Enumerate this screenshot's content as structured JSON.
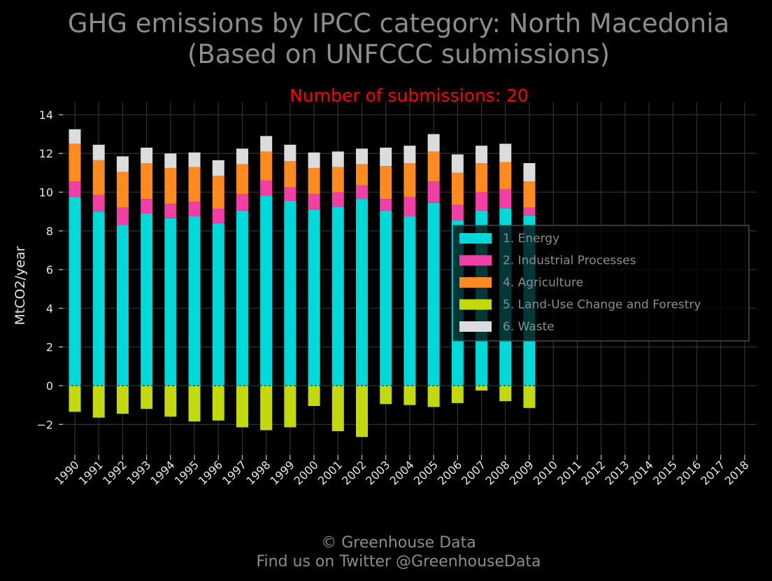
{
  "title_line1": "GHG emissions by IPCC category: North Macedonia",
  "title_line2": "(Based on UNFCCC submissions)",
  "subtitle": "Number of submissions: 20",
  "footer_line1": "© Greenhouse Data",
  "footer_line2": "Find us on Twitter @GreenhouseData",
  "colors": {
    "background": "#000000",
    "grid": "#2e2e2e",
    "subtitle": "#ff0000",
    "text": "#8c8c8c"
  },
  "chart_data": {
    "type": "bar",
    "stacked": true,
    "ylabel": "MtCO2/year",
    "xlabel": "",
    "ylim": [
      -3.5,
      14
    ],
    "yticks": [
      -2,
      0,
      2,
      4,
      6,
      8,
      10,
      12,
      14
    ],
    "ytick_labels": [
      "−2",
      "0",
      "2",
      "4",
      "6",
      "8",
      "10",
      "12",
      "14"
    ],
    "grid": true,
    "legend_position": "center-right",
    "categories": [
      "1990",
      "1991",
      "1992",
      "1993",
      "1994",
      "1995",
      "1996",
      "1997",
      "1998",
      "1999",
      "2000",
      "2001",
      "2002",
      "2003",
      "2004",
      "2005",
      "2006",
      "2007",
      "2008",
      "2009",
      "2010",
      "2011",
      "2012",
      "2013",
      "2014",
      "2015",
      "2016",
      "2017",
      "2018"
    ],
    "series": [
      {
        "name": "1. Energy",
        "color": "#00d9d9",
        "values": [
          9.75,
          9.0,
          8.3,
          8.9,
          8.65,
          8.75,
          8.4,
          9.05,
          9.8,
          9.55,
          9.1,
          9.25,
          9.65,
          9.05,
          8.75,
          9.45,
          8.55,
          9.05,
          9.15,
          8.8,
          null,
          null,
          null,
          null,
          null,
          null,
          null,
          null,
          null
        ]
      },
      {
        "name": "2. Industrial Processes",
        "color": "#f23fa5",
        "values": [
          0.8,
          0.85,
          0.9,
          0.75,
          0.75,
          0.75,
          0.75,
          0.85,
          0.8,
          0.7,
          0.8,
          0.75,
          0.7,
          0.6,
          1.0,
          1.1,
          0.8,
          0.95,
          1.0,
          0.4,
          null,
          null,
          null,
          null,
          null,
          null,
          null,
          null,
          null
        ]
      },
      {
        "name": "4. Agriculture",
        "color": "#ff8a1f",
        "values": [
          1.95,
          1.8,
          1.85,
          1.85,
          1.85,
          1.8,
          1.7,
          1.55,
          1.5,
          1.35,
          1.35,
          1.3,
          1.1,
          1.7,
          1.75,
          1.55,
          1.65,
          1.5,
          1.4,
          1.35,
          null,
          null,
          null,
          null,
          null,
          null,
          null,
          null,
          null
        ]
      },
      {
        "name": "5. Land-Use Change and Forestry",
        "color": "#c2d90d",
        "values": [
          -1.35,
          -1.65,
          -1.45,
          -1.2,
          -1.6,
          -1.85,
          -1.8,
          -2.15,
          -2.3,
          -2.15,
          -1.05,
          -2.35,
          -2.65,
          -0.95,
          -1.0,
          -1.1,
          -0.9,
          -0.25,
          -0.8,
          -1.15,
          null,
          null,
          null,
          null,
          null,
          null,
          null,
          null,
          null
        ]
      },
      {
        "name": "6. Waste",
        "color": "#dcdcdc",
        "values": [
          0.75,
          0.8,
          0.8,
          0.8,
          0.75,
          0.75,
          0.8,
          0.8,
          0.8,
          0.85,
          0.8,
          0.8,
          0.8,
          0.95,
          0.9,
          0.9,
          0.95,
          0.9,
          0.95,
          0.95,
          null,
          null,
          null,
          null,
          null,
          null,
          null,
          null,
          null
        ]
      }
    ]
  }
}
